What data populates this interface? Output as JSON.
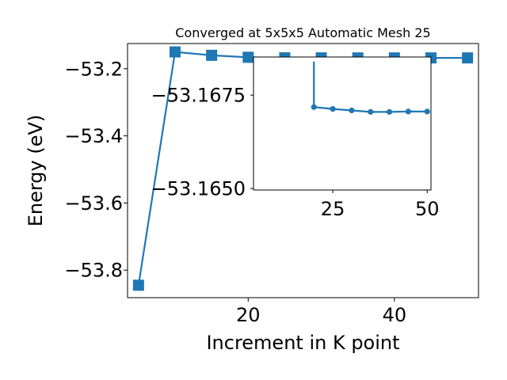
{
  "chart_data": [
    {
      "id": "main",
      "type": "line",
      "title": "Converged at 5x5x5 Automatic Mesh 25",
      "xlabel": "Increment in K point",
      "ylabel": "Energy (eV)",
      "xlim": [
        3.5,
        51.5
      ],
      "ylim": [
        -53.882,
        -53.125
      ],
      "xticks": [
        20,
        40
      ],
      "yticks": [
        -53.2,
        -53.4,
        -53.6,
        -53.8
      ],
      "ytick_labels": [
        "−53.2",
        "−53.4",
        "−53.6",
        "−53.8"
      ],
      "grid": false,
      "color": "#1f77b4",
      "marker": "square",
      "series": [
        {
          "x": [
            5,
            10,
            15,
            20,
            25,
            30,
            35,
            40,
            45,
            50
          ],
          "y": [
            -53.845,
            -53.15,
            -53.16,
            -53.166,
            -53.1676,
            -53.1677,
            -53.1678,
            -53.1678,
            -53.1678,
            -53.1678
          ]
        }
      ]
    },
    {
      "id": "inset",
      "type": "line",
      "title": "",
      "xlabel": "",
      "ylabel": "",
      "xlim": [
        4.0,
        51.0
      ],
      "ylim": [
        -53.16496,
        -53.16852
      ],
      "xticks": [
        25,
        50
      ],
      "yticks": [
        -53.1675,
        -53.165
      ],
      "ytick_labels": [
        "−53.1675",
        "−53.1650"
      ],
      "grid": false,
      "color": "#1f77b4",
      "marker": "circle",
      "series": [
        {
          "x": [
            20,
            20,
            25,
            30,
            35,
            40,
            45,
            50
          ],
          "y": [
            -53.1684,
            -53.16718,
            -53.16713,
            -53.16709,
            -53.16705,
            -53.16705,
            -53.16706,
            -53.16706
          ]
        }
      ]
    }
  ]
}
